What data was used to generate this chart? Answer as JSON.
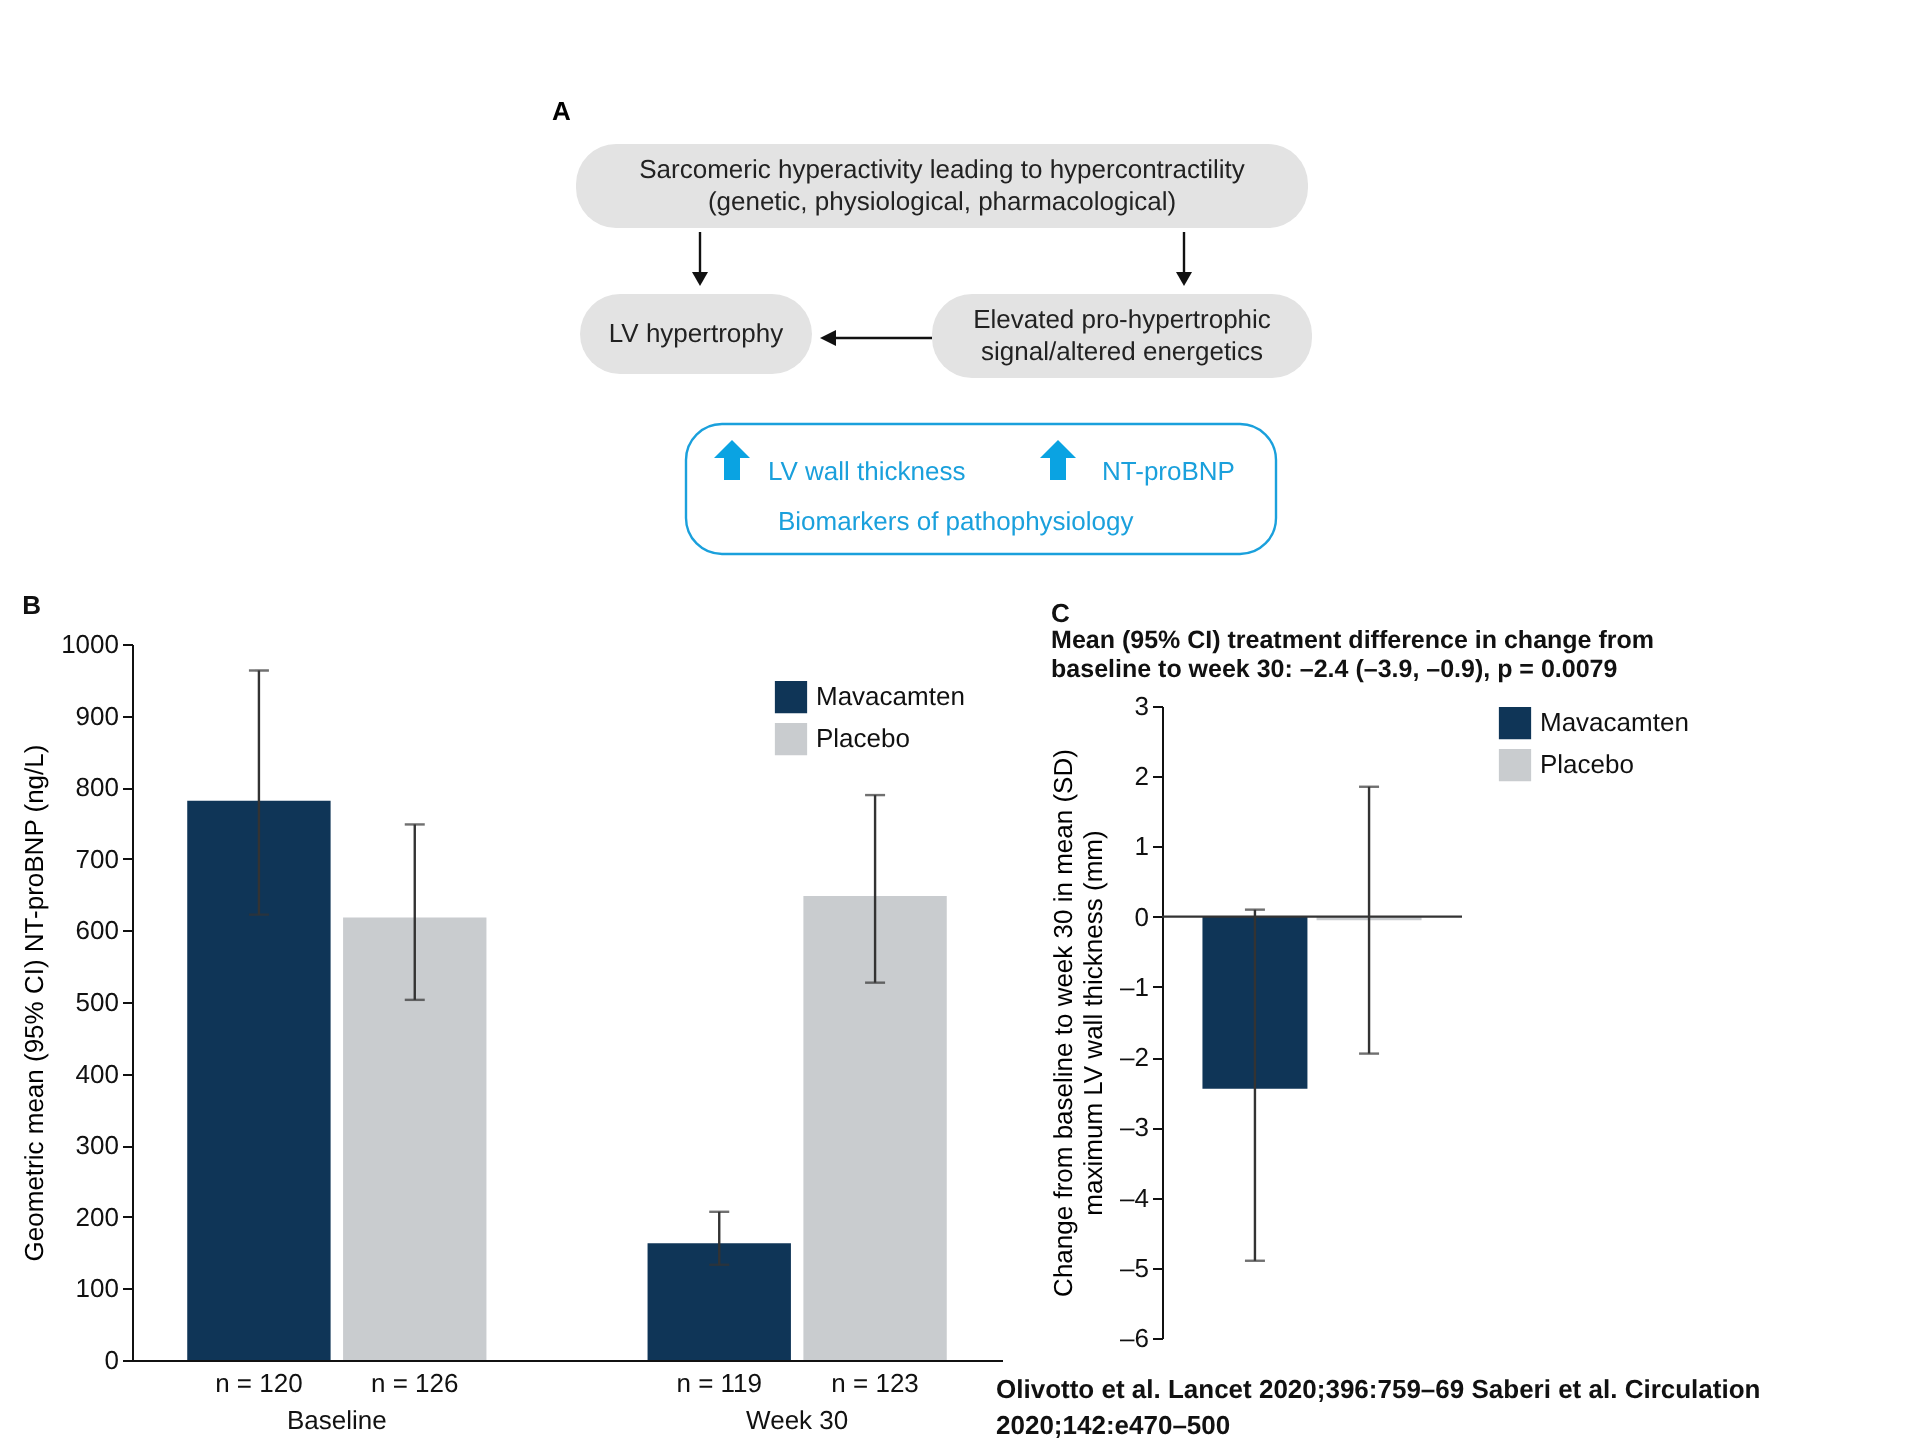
{
  "chart_data": [
    {
      "type": "other",
      "title": "A",
      "annotations": [
        "Sarcomeric hyperactivity leading to hypercontractility\n(genetic, physiological, pharmacological)",
        "LV hypertrophy",
        "Elevated pro-hypertrophic\nsignal/altered energetics",
        "LV wall thickness",
        "NT-proBNP",
        "Biomarkers of pathophysiology"
      ]
    },
    {
      "type": "bar",
      "title": "B",
      "ylabel": "Geometric mean (95% CI) NT-proBNP (ng/L)",
      "categories": [
        "Baseline",
        "Week 30"
      ],
      "series": [
        {
          "name": "Mavacamten",
          "color": "#0f3557",
          "values": [
            781,
            163
          ],
          "errors": [
            [
              622,
              963
            ],
            [
              133,
              207
            ]
          ]
        },
        {
          "name": "Placebo",
          "color": "#c9cccf",
          "values": [
            618,
            648
          ],
          "errors": [
            [
              503,
              748
            ],
            [
              527,
              789
            ]
          ]
        }
      ],
      "ylim": [
        0,
        1000
      ],
      "yticks": [
        0,
        100,
        200,
        300,
        400,
        500,
        600,
        700,
        800,
        900,
        1000
      ],
      "legend": "top right",
      "annotations": [
        "n = 120",
        "n = 126",
        "n = 119",
        "n = 123"
      ]
    },
    {
      "type": "bar",
      "title": "C",
      "subtitle": "Mean (95% CI) treatment difference in change from\nbaseline to week 30: –2.4 (–3.9, –0.9), p = 0.0079",
      "ylabel": "Change from baseline to week 30 in mean (SD)\nmaximum LV wall thickness (mm)",
      "categories": [
        null
      ],
      "series": [
        {
          "name": "Mavacamten",
          "color": "#0f3557",
          "values": [
            -2.45
          ],
          "errors": [
            [
              -4.9,
              0.1
            ]
          ]
        },
        {
          "name": "Placebo",
          "color": "#c9cccf",
          "values": [
            -0.05
          ],
          "errors": [
            [
              -1.95,
              1.85
            ]
          ]
        }
      ],
      "ylim": [
        -6,
        3
      ],
      "yticks": [
        {
          "value": -6,
          "label": "–6"
        },
        {
          "value": -5,
          "label": "–5"
        },
        {
          "value": -4,
          "label": "–4"
        },
        {
          "value": -3,
          "label": "–3"
        },
        {
          "value": -2,
          "label": "–2"
        },
        {
          "value": -1,
          "label": "–1"
        },
        0,
        1,
        2,
        3
      ],
      "legend": "right",
      "tick_labels": "y",
      "ref_lines": [
        {
          "axis": "y",
          "value": 0,
          "color": "#333333"
        }
      ],
      "annotations": [
        "Olivotto et al. Lancet 2020;396:759–69 Saberi et al. Circulation 2020;142:e470–500"
      ]
    }
  ]
}
